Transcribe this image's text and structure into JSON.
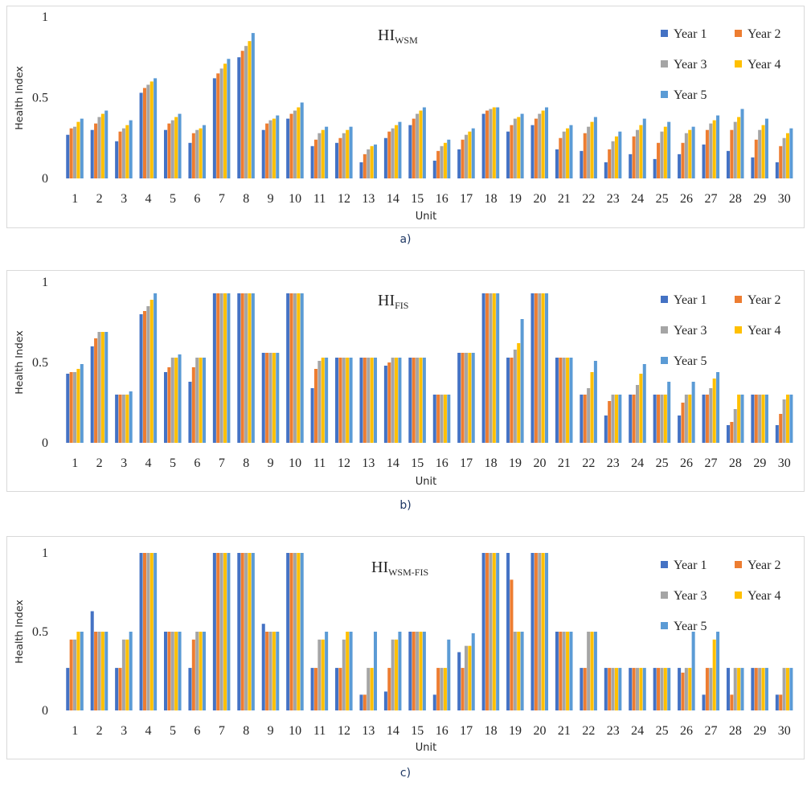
{
  "chart_data": [
    {
      "type": "bar",
      "panel_label": "a)",
      "title": "HI",
      "title_sub": "WSM",
      "xlabel": "Unit",
      "ylabel": "Health Index",
      "ylim": [
        0,
        1
      ],
      "yticks": [
        "0",
        "0.5",
        "1"
      ],
      "categories": [
        "1",
        "2",
        "3",
        "4",
        "5",
        "6",
        "7",
        "8",
        "9",
        "10",
        "11",
        "12",
        "13",
        "14",
        "15",
        "16",
        "17",
        "18",
        "19",
        "20",
        "21",
        "22",
        "23",
        "24",
        "25",
        "26",
        "27",
        "28",
        "29",
        "30"
      ],
      "legend": "right",
      "series": [
        {
          "name": "Year 1",
          "color": "#4472c4",
          "values": [
            0.27,
            0.3,
            0.23,
            0.53,
            0.3,
            0.22,
            0.62,
            0.75,
            0.3,
            0.37,
            0.2,
            0.22,
            0.1,
            0.25,
            0.33,
            0.11,
            0.18,
            0.4,
            0.29,
            0.33,
            0.18,
            0.17,
            0.1,
            0.15,
            0.12,
            0.15,
            0.21,
            0.17,
            0.13,
            0.1
          ]
        },
        {
          "name": "Year 2",
          "color": "#ed7d31",
          "values": [
            0.31,
            0.34,
            0.29,
            0.56,
            0.34,
            0.28,
            0.65,
            0.79,
            0.34,
            0.4,
            0.24,
            0.25,
            0.15,
            0.29,
            0.37,
            0.17,
            0.24,
            0.42,
            0.33,
            0.37,
            0.25,
            0.28,
            0.18,
            0.26,
            0.22,
            0.22,
            0.3,
            0.3,
            0.24,
            0.2
          ]
        },
        {
          "name": "Year 3",
          "color": "#a5a5a5",
          "values": [
            0.32,
            0.38,
            0.31,
            0.58,
            0.36,
            0.3,
            0.68,
            0.82,
            0.36,
            0.42,
            0.28,
            0.28,
            0.18,
            0.31,
            0.4,
            0.2,
            0.27,
            0.43,
            0.37,
            0.4,
            0.29,
            0.32,
            0.23,
            0.3,
            0.29,
            0.28,
            0.34,
            0.35,
            0.3,
            0.25
          ]
        },
        {
          "name": "Year 4",
          "color": "#ffc000",
          "values": [
            0.35,
            0.4,
            0.33,
            0.6,
            0.38,
            0.31,
            0.71,
            0.85,
            0.37,
            0.44,
            0.3,
            0.3,
            0.2,
            0.33,
            0.42,
            0.22,
            0.29,
            0.44,
            0.38,
            0.42,
            0.31,
            0.35,
            0.26,
            0.33,
            0.32,
            0.3,
            0.36,
            0.38,
            0.33,
            0.28
          ]
        },
        {
          "name": "Year 5",
          "color": "#5b9bd5",
          "values": [
            0.37,
            0.42,
            0.36,
            0.62,
            0.4,
            0.33,
            0.74,
            0.9,
            0.39,
            0.47,
            0.32,
            0.32,
            0.21,
            0.35,
            0.44,
            0.24,
            0.31,
            0.44,
            0.4,
            0.44,
            0.33,
            0.38,
            0.29,
            0.37,
            0.35,
            0.32,
            0.39,
            0.43,
            0.37,
            0.31
          ]
        }
      ]
    },
    {
      "type": "bar",
      "panel_label": "b)",
      "title": "HI",
      "title_sub": "FIS",
      "xlabel": "Unit",
      "ylabel": "Health Index",
      "ylim": [
        0,
        1
      ],
      "yticks": [
        "0",
        "0.5",
        "1"
      ],
      "categories": [
        "1",
        "2",
        "3",
        "4",
        "5",
        "6",
        "7",
        "8",
        "9",
        "10",
        "11",
        "12",
        "13",
        "14",
        "15",
        "16",
        "17",
        "18",
        "19",
        "20",
        "21",
        "22",
        "23",
        "24",
        "25",
        "26",
        "27",
        "28",
        "29",
        "30"
      ],
      "legend": "right",
      "series": [
        {
          "name": "Year 1",
          "color": "#4472c4",
          "values": [
            0.43,
            0.6,
            0.3,
            0.8,
            0.44,
            0.38,
            0.93,
            0.93,
            0.56,
            0.93,
            0.34,
            0.53,
            0.53,
            0.48,
            0.53,
            0.3,
            0.56,
            0.93,
            0.53,
            0.93,
            0.53,
            0.3,
            0.17,
            0.3,
            0.3,
            0.17,
            0.3,
            0.11,
            0.3,
            0.11
          ]
        },
        {
          "name": "Year 2",
          "color": "#ed7d31",
          "values": [
            0.44,
            0.65,
            0.3,
            0.82,
            0.47,
            0.47,
            0.93,
            0.93,
            0.56,
            0.93,
            0.46,
            0.53,
            0.53,
            0.5,
            0.53,
            0.3,
            0.56,
            0.93,
            0.53,
            0.93,
            0.53,
            0.3,
            0.26,
            0.3,
            0.3,
            0.25,
            0.3,
            0.13,
            0.3,
            0.18
          ]
        },
        {
          "name": "Year 3",
          "color": "#a5a5a5",
          "values": [
            0.44,
            0.69,
            0.3,
            0.85,
            0.53,
            0.53,
            0.93,
            0.93,
            0.56,
            0.93,
            0.51,
            0.53,
            0.53,
            0.53,
            0.53,
            0.3,
            0.56,
            0.93,
            0.58,
            0.93,
            0.53,
            0.34,
            0.3,
            0.36,
            0.3,
            0.3,
            0.34,
            0.21,
            0.3,
            0.27
          ]
        },
        {
          "name": "Year 4",
          "color": "#ffc000",
          "values": [
            0.46,
            0.69,
            0.3,
            0.89,
            0.53,
            0.53,
            0.93,
            0.93,
            0.56,
            0.93,
            0.53,
            0.53,
            0.53,
            0.53,
            0.53,
            0.3,
            0.56,
            0.93,
            0.62,
            0.93,
            0.53,
            0.44,
            0.3,
            0.43,
            0.3,
            0.3,
            0.4,
            0.3,
            0.3,
            0.3
          ]
        },
        {
          "name": "Year 5",
          "color": "#5b9bd5",
          "values": [
            0.49,
            0.69,
            0.32,
            0.93,
            0.55,
            0.53,
            0.93,
            0.93,
            0.56,
            0.93,
            0.53,
            0.53,
            0.53,
            0.53,
            0.53,
            0.3,
            0.56,
            0.93,
            0.77,
            0.93,
            0.53,
            0.51,
            0.3,
            0.49,
            0.38,
            0.38,
            0.44,
            0.3,
            0.3,
            0.3
          ]
        }
      ]
    },
    {
      "type": "bar",
      "panel_label": "c)",
      "title": "HI",
      "title_sub": "WSM-FIS",
      "xlabel": "Unit",
      "ylabel": "Health Index",
      "ylim": [
        0,
        1
      ],
      "yticks": [
        "0",
        "0.5",
        "1"
      ],
      "categories": [
        "1",
        "2",
        "3",
        "4",
        "5",
        "6",
        "7",
        "8",
        "9",
        "10",
        "11",
        "12",
        "13",
        "14",
        "15",
        "16",
        "17",
        "18",
        "19",
        "20",
        "21",
        "22",
        "23",
        "24",
        "25",
        "26",
        "27",
        "28",
        "29",
        "30"
      ],
      "legend": "right",
      "series": [
        {
          "name": "Year 1",
          "color": "#4472c4",
          "values": [
            0.27,
            0.63,
            0.27,
            1.0,
            0.5,
            0.27,
            1.0,
            1.0,
            0.55,
            1.0,
            0.27,
            0.27,
            0.1,
            0.12,
            0.5,
            0.1,
            0.37,
            1.0,
            1.0,
            1.0,
            0.5,
            0.27,
            0.27,
            0.27,
            0.27,
            0.27,
            0.1,
            0.27,
            0.27,
            0.1
          ]
        },
        {
          "name": "Year 2",
          "color": "#ed7d31",
          "values": [
            0.45,
            0.5,
            0.27,
            1.0,
            0.5,
            0.45,
            1.0,
            1.0,
            0.5,
            1.0,
            0.27,
            0.27,
            0.1,
            0.27,
            0.5,
            0.27,
            0.27,
            1.0,
            0.83,
            1.0,
            0.5,
            0.27,
            0.27,
            0.27,
            0.27,
            0.24,
            0.27,
            0.1,
            0.27,
            0.1
          ]
        },
        {
          "name": "Year 3",
          "color": "#a5a5a5",
          "values": [
            0.45,
            0.5,
            0.45,
            1.0,
            0.5,
            0.5,
            1.0,
            1.0,
            0.5,
            1.0,
            0.45,
            0.45,
            0.27,
            0.45,
            0.5,
            0.27,
            0.41,
            1.0,
            0.5,
            1.0,
            0.5,
            0.5,
            0.27,
            0.27,
            0.27,
            0.27,
            0.27,
            0.27,
            0.27,
            0.27
          ]
        },
        {
          "name": "Year 4",
          "color": "#ffc000",
          "values": [
            0.5,
            0.5,
            0.45,
            1.0,
            0.5,
            0.5,
            1.0,
            1.0,
            0.5,
            1.0,
            0.45,
            0.5,
            0.27,
            0.45,
            0.5,
            0.27,
            0.41,
            1.0,
            0.5,
            1.0,
            0.5,
            0.5,
            0.27,
            0.27,
            0.27,
            0.27,
            0.45,
            0.27,
            0.27,
            0.27
          ]
        },
        {
          "name": "Year 5",
          "color": "#5b9bd5",
          "values": [
            0.5,
            0.5,
            0.5,
            1.0,
            0.5,
            0.5,
            1.0,
            1.0,
            0.5,
            1.0,
            0.5,
            0.5,
            0.5,
            0.5,
            0.5,
            0.45,
            0.49,
            1.0,
            0.5,
            1.0,
            0.5,
            0.5,
            0.27,
            0.27,
            0.27,
            0.5,
            0.5,
            0.27,
            0.27,
            0.27
          ]
        }
      ]
    }
  ]
}
